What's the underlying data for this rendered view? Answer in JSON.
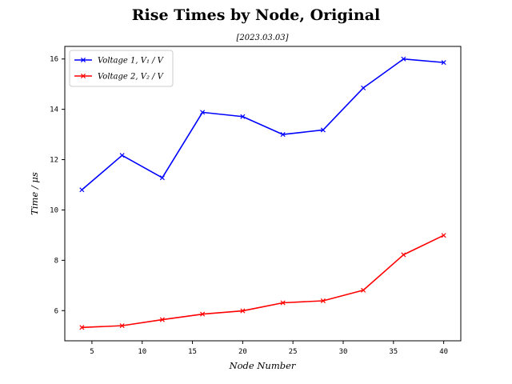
{
  "chart_data": {
    "type": "line",
    "title": "Rise Times by Node, Original",
    "subtitle": "[2023.03.03]",
    "xlabel": "Node Number",
    "ylabel": "Time / μs",
    "xlim": [
      2.3,
      41.7
    ],
    "ylim": [
      4.8,
      16.5
    ],
    "xticks": [
      5,
      10,
      15,
      20,
      25,
      30,
      35,
      40
    ],
    "yticks": [
      6,
      8,
      10,
      12,
      14,
      16
    ],
    "grid": false,
    "legend_position": "top-left",
    "x": [
      4,
      8,
      12,
      16,
      20,
      24,
      28,
      32,
      36,
      40
    ],
    "series": [
      {
        "name": "Voltage 1, V₁ / V",
        "color": "#0000ff",
        "marker": "x",
        "values": [
          10.8,
          12.17,
          11.28,
          13.88,
          13.71,
          13.0,
          13.18,
          14.85,
          16.0,
          15.86
        ]
      },
      {
        "name": "Voltage 2, V₂ / V",
        "color": "#ff0000",
        "marker": "x",
        "values": [
          5.33,
          5.4,
          5.64,
          5.86,
          5.99,
          6.31,
          6.39,
          6.81,
          8.22,
          8.99
        ]
      }
    ]
  }
}
